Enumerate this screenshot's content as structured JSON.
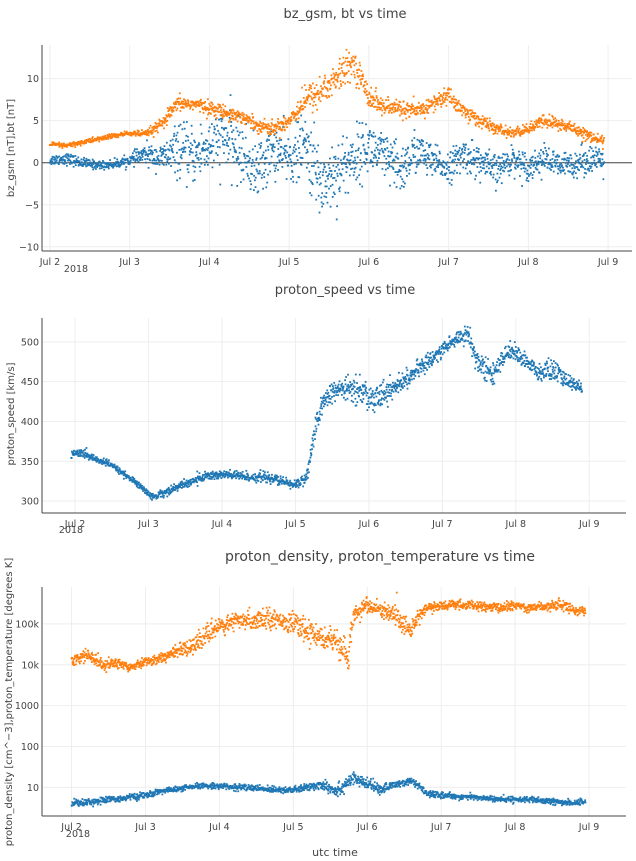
{
  "chart_data": [
    {
      "type": "scatter",
      "title": "bz_gsm, bt vs time",
      "ylabel": "bz_gsm [nT],bt [nT]",
      "xlabel": "",
      "xlim": [
        1.9,
        9.3
      ],
      "ylim": [
        -10.5,
        14
      ],
      "yscale": "linear",
      "yticks": [
        -10,
        -5,
        0,
        5,
        10
      ],
      "ytick_labels": [
        "−10",
        "−5",
        "0",
        "5",
        "10"
      ],
      "xticks": [
        2,
        3,
        4,
        5,
        6,
        7,
        8,
        9
      ],
      "xtick_labels": [
        "Jul 2",
        "Jul 3",
        "Jul 4",
        "Jul 5",
        "Jul 6",
        "Jul 7",
        "Jul 8",
        "Jul 9"
      ],
      "year_label": "2018",
      "zero_line": true,
      "grid": true,
      "series": [
        {
          "color": "#1f77b4",
          "x": [
            2.0,
            2.2,
            2.4,
            2.6,
            2.8,
            3.0,
            3.2,
            3.4,
            3.6,
            3.8,
            4.0,
            4.2,
            4.4,
            4.6,
            4.8,
            5.0,
            5.2,
            5.4,
            5.6,
            5.8,
            6.0,
            6.2,
            6.4,
            6.6,
            6.8,
            7.0,
            7.2,
            7.4,
            7.6,
            7.8,
            8.0,
            8.2,
            8.4,
            8.6,
            8.8,
            8.95
          ],
          "y": [
            0.3,
            0.5,
            0.0,
            -0.3,
            -0.2,
            0.3,
            1.0,
            0.5,
            1.5,
            0.8,
            2.0,
            3.0,
            1.0,
            -1.0,
            1.5,
            0.5,
            2.0,
            -2.5,
            -1.0,
            0.5,
            2.0,
            0.5,
            -1.0,
            1.5,
            0.0,
            -0.5,
            1.0,
            0.0,
            -1.0,
            0.5,
            -0.5,
            0.5,
            -0.5,
            0.0,
            0.5,
            0.0
          ],
          "spread": [
            0.6,
            0.7,
            0.6,
            0.5,
            0.5,
            0.6,
            1.2,
            1.5,
            3.0,
            3.2,
            3.5,
            3.8,
            3.5,
            3.5,
            3.0,
            3.0,
            3.8,
            4.5,
            4.0,
            3.5,
            3.0,
            3.0,
            3.0,
            2.5,
            2.0,
            1.8,
            2.0,
            2.0,
            1.8,
            1.6,
            1.6,
            1.6,
            1.5,
            1.6,
            1.8,
            1.6
          ]
        },
        {
          "color": "#ff7f0e",
          "x": [
            2.0,
            2.2,
            2.4,
            2.6,
            2.8,
            3.0,
            3.2,
            3.4,
            3.6,
            3.8,
            4.0,
            4.2,
            4.4,
            4.6,
            4.8,
            5.0,
            5.2,
            5.4,
            5.6,
            5.8,
            6.0,
            6.2,
            6.4,
            6.6,
            6.8,
            7.0,
            7.2,
            7.4,
            7.6,
            7.8,
            8.0,
            8.2,
            8.4,
            8.6,
            8.8,
            8.95
          ],
          "y": [
            2.2,
            2.0,
            2.4,
            2.8,
            3.2,
            3.5,
            3.4,
            4.5,
            7.0,
            7.0,
            6.5,
            6.0,
            5.5,
            4.5,
            4.0,
            5.0,
            7.5,
            8.5,
            10.0,
            12.0,
            8.0,
            6.5,
            6.5,
            6.0,
            7.0,
            8.0,
            6.0,
            5.0,
            4.0,
            3.5,
            4.0,
            5.0,
            4.5,
            4.0,
            3.0,
            2.5
          ],
          "spread": [
            0.3,
            0.3,
            0.3,
            0.3,
            0.3,
            0.3,
            0.4,
            0.8,
            0.8,
            0.8,
            0.8,
            0.8,
            0.8,
            0.8,
            0.8,
            1.0,
            1.5,
            2.0,
            2.0,
            1.5,
            1.5,
            1.0,
            1.0,
            1.0,
            1.0,
            1.0,
            1.0,
            0.8,
            0.6,
            0.6,
            0.6,
            0.8,
            0.8,
            0.8,
            0.6,
            0.6
          ]
        }
      ]
    },
    {
      "type": "scatter",
      "title": "proton_speed vs time",
      "ylabel": "proton_speed [km/s]",
      "xlabel": "",
      "xlim": [
        1.55,
        9.5
      ],
      "ylim": [
        285,
        530
      ],
      "yscale": "linear",
      "yticks": [
        300,
        350,
        400,
        450,
        500
      ],
      "ytick_labels": [
        "300",
        "350",
        "400",
        "450",
        "500"
      ],
      "xticks": [
        2,
        3,
        4,
        5,
        6,
        7,
        8,
        9
      ],
      "xtick_labels": [
        "Jul 2",
        "Jul 3",
        "Jul 4",
        "Jul 5",
        "Jul 6",
        "Jul 7",
        "Jul 8",
        "Jul 9"
      ],
      "year_label": "2018",
      "zero_line": false,
      "grid": true,
      "series": [
        {
          "color": "#1f77b4",
          "x": [
            1.95,
            2.1,
            2.3,
            2.5,
            2.7,
            2.9,
            3.05,
            3.2,
            3.4,
            3.6,
            3.8,
            4.0,
            4.2,
            4.4,
            4.6,
            4.8,
            5.0,
            5.15,
            5.3,
            5.4,
            5.6,
            5.8,
            6.0,
            6.2,
            6.4,
            6.6,
            6.8,
            7.0,
            7.2,
            7.35,
            7.5,
            7.7,
            7.9,
            8.1,
            8.3,
            8.5,
            8.7,
            8.9
          ],
          "y": [
            360,
            360,
            352,
            345,
            332,
            318,
            305,
            310,
            318,
            325,
            332,
            333,
            332,
            330,
            330,
            325,
            320,
            330,
            400,
            430,
            440,
            442,
            430,
            435,
            445,
            460,
            475,
            490,
            505,
            510,
            470,
            460,
            490,
            480,
            460,
            465,
            450,
            443
          ],
          "spread": [
            5,
            5,
            4,
            4,
            4,
            4,
            4,
            5,
            5,
            6,
            6,
            6,
            6,
            6,
            6,
            6,
            6,
            8,
            15,
            12,
            12,
            15,
            20,
            15,
            12,
            10,
            10,
            10,
            10,
            12,
            15,
            12,
            10,
            10,
            12,
            15,
            10,
            6
          ]
        }
      ]
    },
    {
      "type": "scatter",
      "title": "proton_density, proton_temperature vs time",
      "ylabel": "proton_density [cm^−3],proton_temperature [degrees K]",
      "xlabel": "utc time",
      "xlim": [
        1.6,
        9.5
      ],
      "ylim": [
        2,
        800000
      ],
      "yscale": "log",
      "yticks": [
        10,
        100,
        1000,
        10000,
        100000
      ],
      "ytick_labels": [
        "10",
        "100",
        "1000",
        "10k",
        "100k"
      ],
      "xticks": [
        2,
        3,
        4,
        5,
        6,
        7,
        8,
        9
      ],
      "xtick_labels": [
        "Jul 2",
        "Jul 3",
        "Jul 4",
        "Jul 5",
        "Jul 6",
        "Jul 7",
        "Jul 8",
        "Jul 9"
      ],
      "year_label": "2018",
      "zero_line": false,
      "grid": true,
      "series": [
        {
          "color": "#1f77b4",
          "x": [
            2.0,
            2.2,
            2.4,
            2.6,
            2.8,
            3.0,
            3.2,
            3.4,
            3.6,
            3.8,
            4.0,
            4.2,
            4.4,
            4.6,
            4.8,
            5.0,
            5.2,
            5.4,
            5.6,
            5.8,
            6.0,
            6.2,
            6.4,
            6.6,
            6.8,
            7.0,
            7.2,
            7.4,
            7.6,
            7.8,
            8.0,
            8.2,
            8.4,
            8.6,
            8.8,
            8.95
          ],
          "y": [
            4.2,
            4.3,
            4.8,
            5.2,
            5.8,
            6.3,
            8.0,
            9.0,
            10.0,
            11.0,
            11.0,
            10.0,
            10.0,
            9.0,
            9.0,
            8.5,
            10.0,
            12.0,
            8.0,
            16.0,
            12.0,
            9.0,
            12.0,
            14.0,
            7.0,
            6.5,
            6.0,
            5.8,
            5.5,
            5.0,
            5.2,
            5.0,
            4.6,
            4.4,
            4.2,
            4.5
          ],
          "spread": [
            0.08,
            0.08,
            0.07,
            0.07,
            0.07,
            0.07,
            0.06,
            0.06,
            0.06,
            0.06,
            0.06,
            0.07,
            0.07,
            0.07,
            0.07,
            0.07,
            0.08,
            0.14,
            0.15,
            0.15,
            0.12,
            0.1,
            0.08,
            0.08,
            0.07,
            0.06,
            0.06,
            0.06,
            0.06,
            0.06,
            0.06,
            0.06,
            0.07,
            0.07,
            0.07,
            0.06
          ]
        },
        {
          "color": "#ff7f0e",
          "x": [
            2.0,
            2.2,
            2.4,
            2.6,
            2.8,
            3.0,
            3.2,
            3.4,
            3.6,
            3.8,
            4.0,
            4.2,
            4.4,
            4.6,
            4.8,
            5.0,
            5.2,
            5.4,
            5.6,
            5.75,
            5.85,
            6.0,
            6.2,
            6.4,
            6.6,
            6.8,
            7.0,
            7.2,
            7.4,
            7.6,
            7.8,
            8.0,
            8.2,
            8.4,
            8.6,
            8.8,
            8.95
          ],
          "y": [
            12000,
            18000,
            10000,
            11000,
            9000,
            12000,
            14000,
            20000,
            28000,
            45000,
            90000,
            110000,
            120000,
            140000,
            130000,
            100000,
            60000,
            50000,
            30000,
            12000,
            200000,
            280000,
            200000,
            150000,
            60000,
            250000,
            270000,
            300000,
            280000,
            260000,
            250000,
            280000,
            250000,
            270000,
            300000,
            220000,
            200000
          ],
          "spread": [
            0.12,
            0.15,
            0.12,
            0.12,
            0.1,
            0.1,
            0.12,
            0.14,
            0.16,
            0.2,
            0.22,
            0.2,
            0.2,
            0.22,
            0.2,
            0.22,
            0.25,
            0.25,
            0.28,
            0.25,
            0.22,
            0.16,
            0.2,
            0.25,
            0.2,
            0.12,
            0.1,
            0.1,
            0.1,
            0.1,
            0.1,
            0.1,
            0.1,
            0.1,
            0.12,
            0.1,
            0.1
          ]
        }
      ]
    }
  ]
}
